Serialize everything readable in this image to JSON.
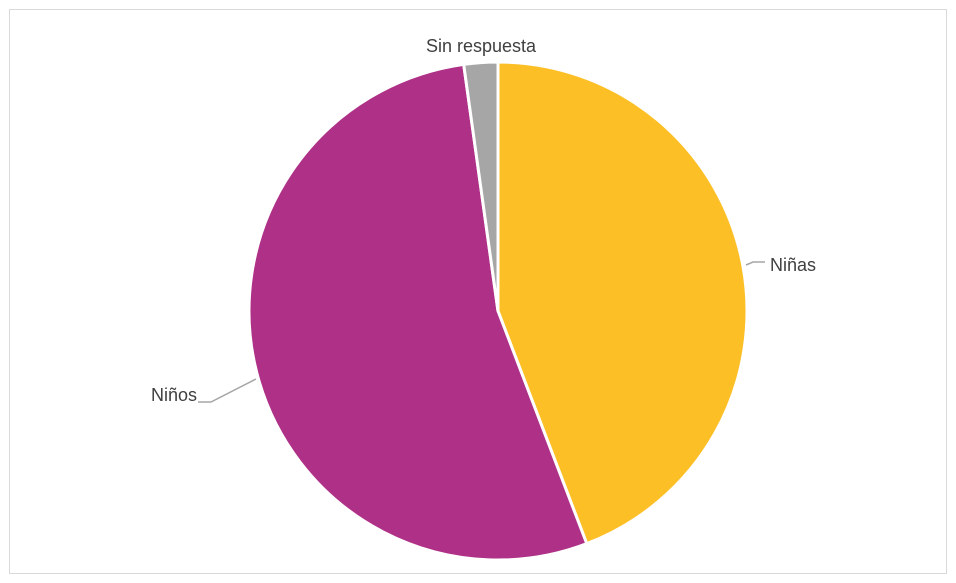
{
  "chart_data": {
    "type": "pie",
    "title": "",
    "legend": "none",
    "categories": [
      "Niñas",
      "Niños",
      "Sin respuesta"
    ],
    "values": [
      44.2,
      53.6,
      2.2
    ],
    "colors": [
      "#FDBF26",
      "#AE3187",
      "#A6A6A6"
    ],
    "start": "12 o'clock",
    "direction": "clockwise",
    "data_labels": "category name with leader line"
  }
}
